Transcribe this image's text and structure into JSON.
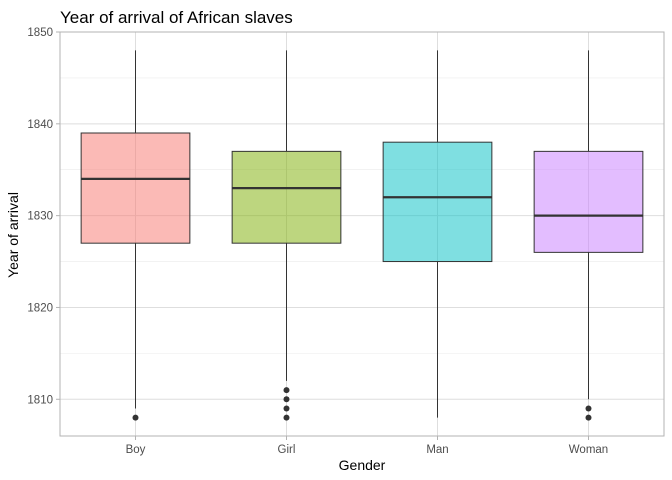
{
  "chart_data": {
    "type": "box",
    "title": "Year of arrival of African slaves",
    "xlabel": "Gender",
    "ylabel": "Year of arrival",
    "ylim": [
      1806,
      1850
    ],
    "yticks": [
      1810,
      1820,
      1830,
      1840,
      1850
    ],
    "grid": true,
    "legend": "none",
    "categories": [
      "Boy",
      "Girl",
      "Man",
      "Woman"
    ],
    "boxes": [
      {
        "category": "Boy",
        "whisker_low": 1809,
        "q1": 1827,
        "median": 1834,
        "q3": 1839,
        "whisker_high": 1848,
        "outliers": [
          1808
        ],
        "color": "#F8766D"
      },
      {
        "category": "Girl",
        "whisker_low": 1812,
        "q1": 1827,
        "median": 1833,
        "q3": 1837,
        "whisker_high": 1848,
        "outliers": [
          1808,
          1809,
          1810,
          1811
        ],
        "color": "#7CAE00"
      },
      {
        "category": "Man",
        "whisker_low": 1808,
        "q1": 1825,
        "median": 1832,
        "q3": 1838,
        "whisker_high": 1848,
        "outliers": [],
        "color": "#00BFC4"
      },
      {
        "category": "Woman",
        "whisker_low": 1810,
        "q1": 1826,
        "median": 1830,
        "q3": 1837,
        "whisker_high": 1848,
        "outliers": [
          1808,
          1809
        ],
        "color": "#C77CFF"
      }
    ]
  }
}
